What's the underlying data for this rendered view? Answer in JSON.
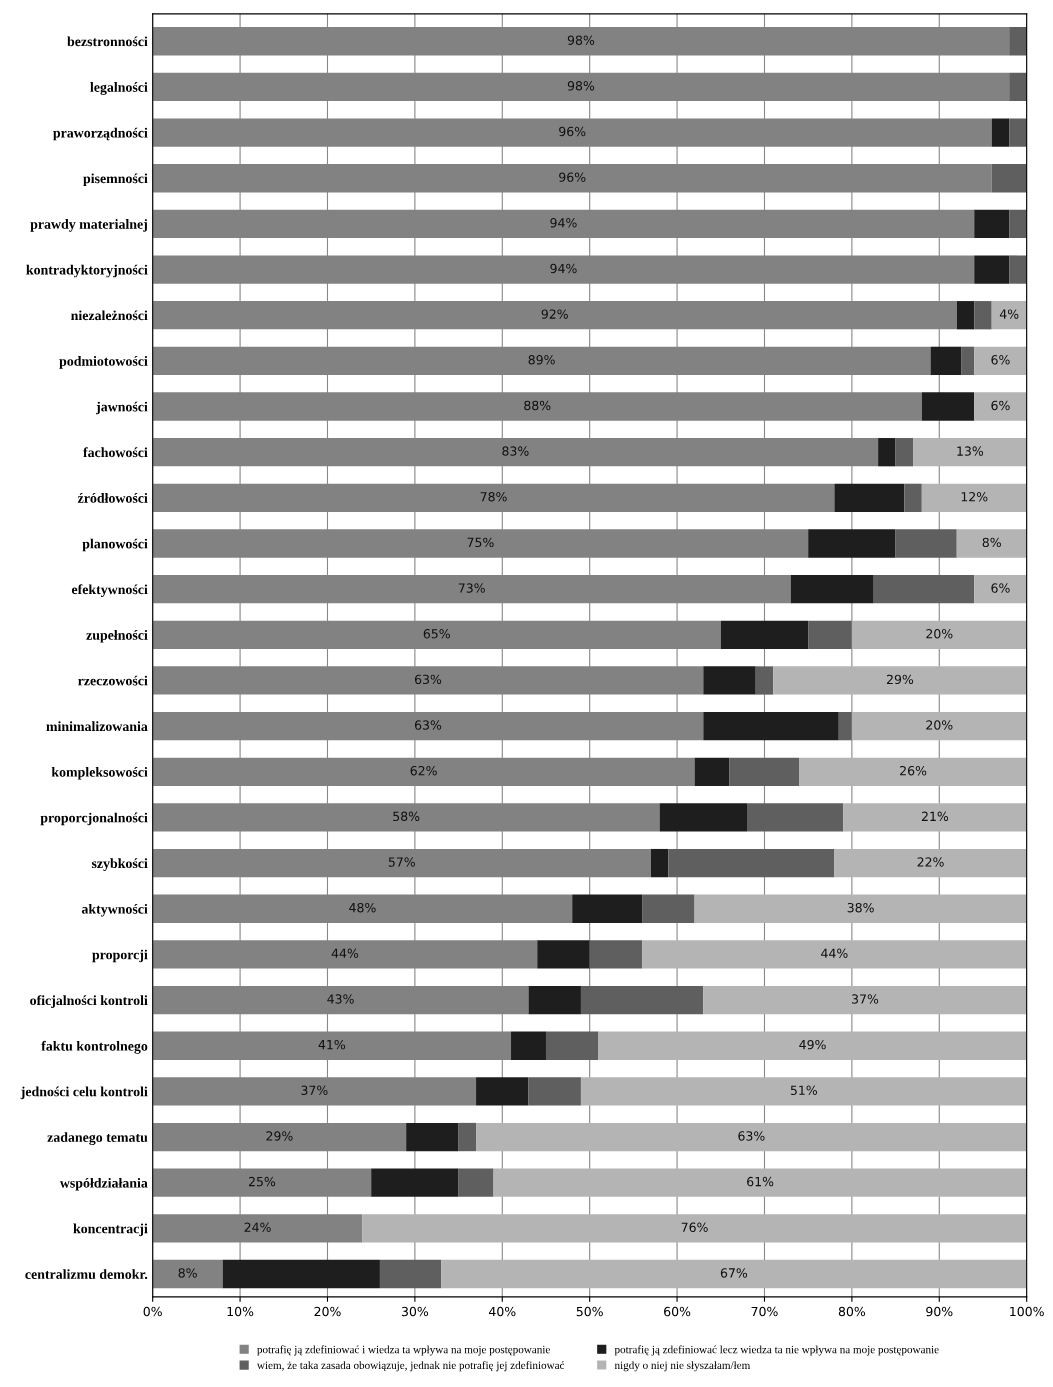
{
  "chart_data": {
    "type": "bar",
    "orientation": "horizontal",
    "stacked": true,
    "categories": [
      "bezstronności",
      "legalności",
      "praworządności",
      "pisemności",
      "prawdy materialnej",
      "kontradyktoryjności",
      "niezależności",
      "podmiotowości",
      "jawności",
      "fachowości",
      "źródłowości",
      "planowości",
      "efektywności",
      "zupełności",
      "rzeczowości",
      "minimalizowania",
      "kompleksowości",
      "proporcjonalności",
      "szybkości",
      "aktywności",
      "proporcji",
      "oficjalności kontroli",
      "faktu kontrolnego",
      "jedności celu kontroli",
      "zadanego tematu",
      "współdziałania",
      "koncentracji",
      "centralizmu demokr."
    ],
    "series": [
      {
        "name": "potrafię ją zdefiniować i wiedza ta wpływa na moje postępowanie",
        "color": "#828282",
        "values": [
          98,
          98,
          96,
          96,
          94,
          94,
          92,
          89,
          88,
          83,
          78,
          75,
          73,
          65,
          63,
          63,
          62,
          58,
          57,
          48,
          44,
          43,
          41,
          37,
          29,
          25,
          24,
          8
        ],
        "value_labels": [
          "98%",
          "98%",
          "96%",
          "96%",
          "94%",
          "94%",
          "92%",
          "89%",
          "88%",
          "83%",
          "78%",
          "75%",
          "73%",
          "65%",
          "63%",
          "63%",
          "62%",
          "58%",
          "57%",
          "48%",
          "44%",
          "43%",
          "41%",
          "37%",
          "29%",
          "25%",
          "24%",
          "8%"
        ]
      },
      {
        "name": "potrafię ją zdefiniować lecz wiedza ta nie wpływa na moje postępowanie",
        "color": "#1e1e1e",
        "values": [
          0,
          0,
          2,
          0,
          4,
          4,
          2,
          3.5,
          6,
          2,
          8,
          10,
          9.5,
          10,
          6,
          15.5,
          4,
          10,
          2,
          8,
          6,
          6,
          4,
          6,
          6,
          10,
          0,
          18
        ]
      },
      {
        "name": "wiem, że taka zasada obowiązuje, jednak nie potrafię jej zdefiniować",
        "color": "#5f5f5f",
        "values": [
          2,
          2,
          2,
          4,
          2,
          2,
          2,
          1.5,
          0,
          2,
          2,
          7,
          11.5,
          5,
          2,
          1.5,
          8,
          11,
          19,
          6,
          6,
          14,
          6,
          6,
          2,
          4,
          0,
          7
        ]
      },
      {
        "name": "nigdy o niej nie słyszałam/łem",
        "color": "#b4b4b4",
        "values": [
          0,
          0,
          0,
          0,
          0,
          0,
          4,
          6,
          6,
          13,
          12,
          8,
          6,
          20,
          29,
          20,
          26,
          21,
          22,
          38,
          44,
          37,
          49,
          51,
          63,
          61,
          76,
          67
        ],
        "value_labels": [
          null,
          null,
          null,
          null,
          null,
          null,
          "4%",
          "6%",
          "6%",
          "13%",
          "12%",
          "8%",
          "6%",
          "20%",
          "29%",
          "20%",
          "26%",
          "21%",
          "22%",
          "38%",
          "44%",
          "37%",
          "49%",
          "51%",
          "63%",
          "61%",
          "76%",
          "67%"
        ]
      }
    ],
    "xlim": [
      0,
      100
    ],
    "xticks": [
      {
        "value": 0,
        "label": "0%"
      },
      {
        "value": 10,
        "label": "10%"
      },
      {
        "value": 20,
        "label": "20%"
      },
      {
        "value": 30,
        "label": "30%"
      },
      {
        "value": 40,
        "label": "40%"
      },
      {
        "value": 50,
        "label": "50%"
      },
      {
        "value": 60,
        "label": "60%"
      },
      {
        "value": 70,
        "label": "70%"
      },
      {
        "value": 80,
        "label": "80%"
      },
      {
        "value": 90,
        "label": "90%"
      },
      {
        "value": 100,
        "label": "100%"
      }
    ],
    "grid": "x",
    "legend": "bottom"
  }
}
